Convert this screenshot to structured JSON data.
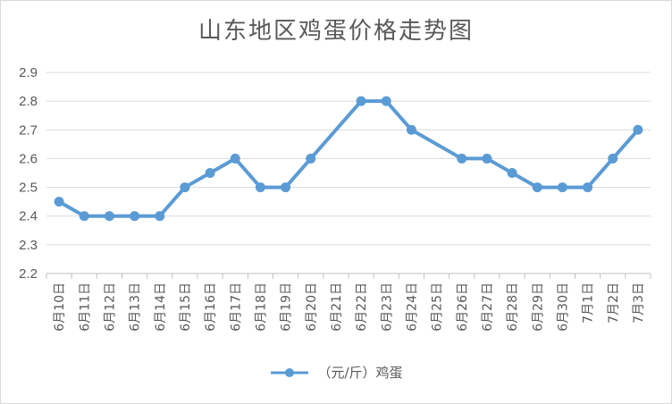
{
  "chart_data": {
    "type": "line",
    "title": "山东地区鸡蛋价格走势图",
    "categories": [
      "6月10日",
      "6月11日",
      "6月12日",
      "6月13日",
      "6月14日",
      "6月15日",
      "6月16日",
      "6月17日",
      "6月18日",
      "6月19日",
      "6月20日",
      "6月21日",
      "6月22日",
      "6月23日",
      "6月24日",
      "6月25日",
      "6月26日",
      "6月27日",
      "6月28日",
      "6月29日",
      "6月30日",
      "7月1日",
      "7月2日",
      "7月3日"
    ],
    "series": [
      {
        "name": "（元/斤）鸡蛋",
        "values": [
          2.45,
          2.4,
          2.4,
          2.4,
          2.4,
          2.5,
          2.55,
          2.6,
          2.5,
          2.5,
          2.6,
          null,
          2.8,
          2.8,
          2.7,
          null,
          2.6,
          2.6,
          2.55,
          2.5,
          2.5,
          2.5,
          2.6,
          2.7
        ]
      }
    ],
    "y_ticks": [
      "2.2",
      "2.3",
      "2.4",
      "2.5",
      "2.6",
      "2.7",
      "2.8",
      "2.9"
    ],
    "ylim": [
      2.2,
      2.9
    ],
    "grid": true,
    "legend": "bottom",
    "color": "#5b9bd5"
  }
}
